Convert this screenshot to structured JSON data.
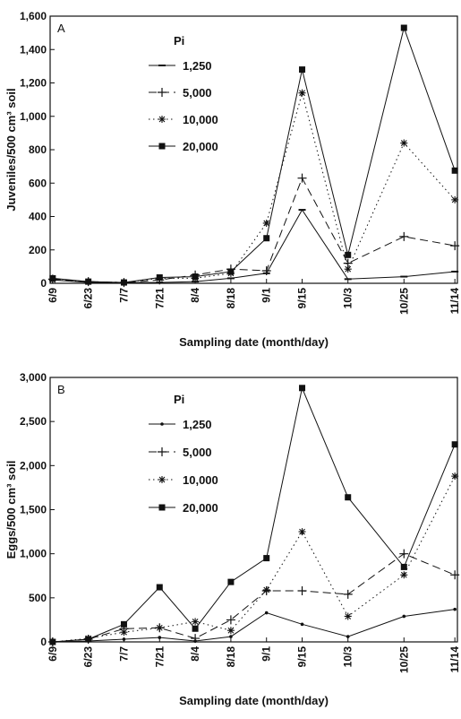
{
  "chart_data": [
    {
      "type": "line",
      "panel_label": "A",
      "ylabel": "Juveniles/500 cm³ soil",
      "xlabel": "Sampling date (month/day)",
      "legend_title": "Pi",
      "legend_position": "top-left",
      "ylim": [
        0,
        1600
      ],
      "yticks": [
        "0",
        "200",
        "400",
        "600",
        "800",
        "1,000",
        "1,200",
        "1,400",
        "1,600"
      ],
      "x": [
        "6/9",
        "6/23",
        "7/7",
        "7/21",
        "8/4",
        "8/18",
        "9/1",
        "9/15",
        "10/3",
        "10/25",
        "11/14"
      ],
      "series": [
        {
          "name": "1,250",
          "style": "solid",
          "marker": "dash",
          "values": [
            20,
            5,
            5,
            5,
            10,
            30,
            60,
            440,
            25,
            40,
            70
          ]
        },
        {
          "name": "5,000",
          "style": "dashed",
          "marker": "plus",
          "values": [
            25,
            10,
            5,
            20,
            50,
            85,
            75,
            630,
            120,
            280,
            225
          ]
        },
        {
          "name": "10,000",
          "style": "dotted",
          "marker": "asterisk",
          "values": [
            20,
            10,
            5,
            30,
            30,
            60,
            360,
            1140,
            85,
            840,
            500
          ]
        },
        {
          "name": "20,000",
          "style": "solid",
          "marker": "square",
          "values": [
            30,
            10,
            5,
            35,
            40,
            70,
            270,
            1280,
            170,
            1530,
            675
          ]
        }
      ]
    },
    {
      "type": "line",
      "panel_label": "B",
      "ylabel": "Eggs/500 cm³ soil",
      "xlabel": "Sampling date (month/day)",
      "legend_title": "Pi",
      "legend_position": "top-left",
      "ylim": [
        0,
        3000
      ],
      "yticks": [
        "0",
        "500",
        "1,000",
        "1,500",
        "2,000",
        "2,500",
        "3,000"
      ],
      "x": [
        "6/9",
        "6/23",
        "7/7",
        "7/21",
        "8/4",
        "8/18",
        "9/1",
        "9/15",
        "10/3",
        "10/25",
        "11/14"
      ],
      "series": [
        {
          "name": "1,250",
          "style": "solid",
          "marker": "dot",
          "values": [
            0,
            10,
            30,
            50,
            10,
            60,
            330,
            200,
            60,
            290,
            370
          ]
        },
        {
          "name": "5,000",
          "style": "dashed",
          "marker": "plus",
          "values": [
            0,
            30,
            150,
            160,
            40,
            250,
            580,
            580,
            540,
            1000,
            760
          ]
        },
        {
          "name": "10,000",
          "style": "dotted",
          "marker": "asterisk",
          "values": [
            0,
            40,
            110,
            160,
            230,
            130,
            590,
            1250,
            290,
            760,
            1880
          ]
        },
        {
          "name": "20,000",
          "style": "solid",
          "marker": "square",
          "values": [
            0,
            30,
            200,
            620,
            150,
            680,
            950,
            2880,
            1640,
            850,
            2240
          ]
        }
      ]
    }
  ]
}
